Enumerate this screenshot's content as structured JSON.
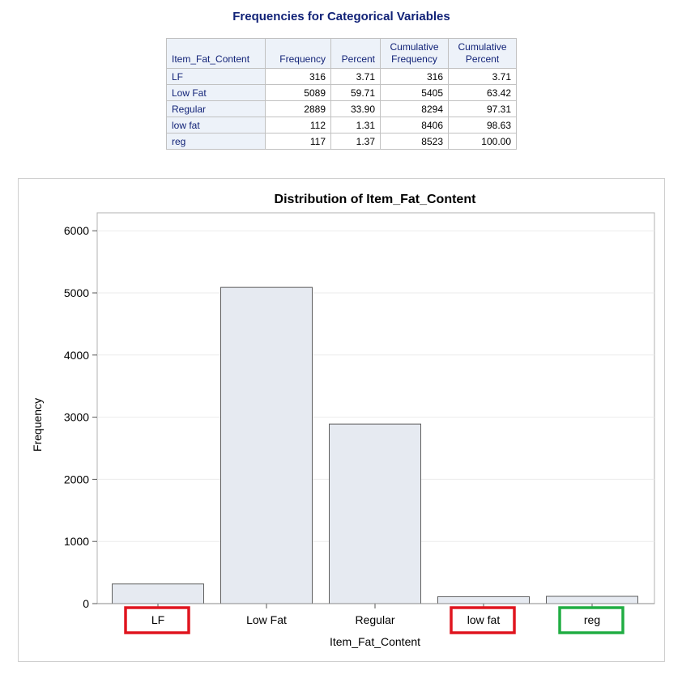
{
  "page_title": "Frequencies for Categorical Variables",
  "table": {
    "headers": [
      "Item_Fat_Content",
      "Frequency",
      "Percent",
      "Cumulative Frequency",
      "Cumulative Percent"
    ],
    "rows": [
      [
        "LF",
        "316",
        "3.71",
        "316",
        "3.71"
      ],
      [
        "Low Fat",
        "5089",
        "59.71",
        "5405",
        "63.42"
      ],
      [
        "Regular",
        "2889",
        "33.90",
        "8294",
        "97.31"
      ],
      [
        "low fat",
        "112",
        "1.31",
        "8406",
        "98.63"
      ],
      [
        "reg",
        "117",
        "1.37",
        "8523",
        "100.00"
      ]
    ]
  },
  "colors": {
    "title": "#112277",
    "header_bg": "#edf2f9",
    "bar_fill": "#e6eaf1",
    "bar_stroke": "#5f5f5f",
    "highlight_red": "#e0151f",
    "highlight_green": "#21ad43"
  },
  "chart_data": {
    "type": "bar",
    "title": "Distribution of Item_Fat_Content",
    "xlabel": "Item_Fat_Content",
    "ylabel": "Frequency",
    "categories": [
      "LF",
      "Low Fat",
      "Regular",
      "low fat",
      "reg"
    ],
    "values": [
      316,
      5089,
      2889,
      112,
      117
    ],
    "ylim": [
      0,
      6300
    ],
    "yticks": [
      0,
      1000,
      2000,
      3000,
      4000,
      5000,
      6000
    ],
    "ytick_labels": [
      "0",
      "1000",
      "2000",
      "3000",
      "4000",
      "5000",
      "6000"
    ],
    "grid": true,
    "highlighted_categories": [
      {
        "category": "LF",
        "color": "red"
      },
      {
        "category": "low fat",
        "color": "red"
      },
      {
        "category": "reg",
        "color": "green"
      }
    ]
  }
}
